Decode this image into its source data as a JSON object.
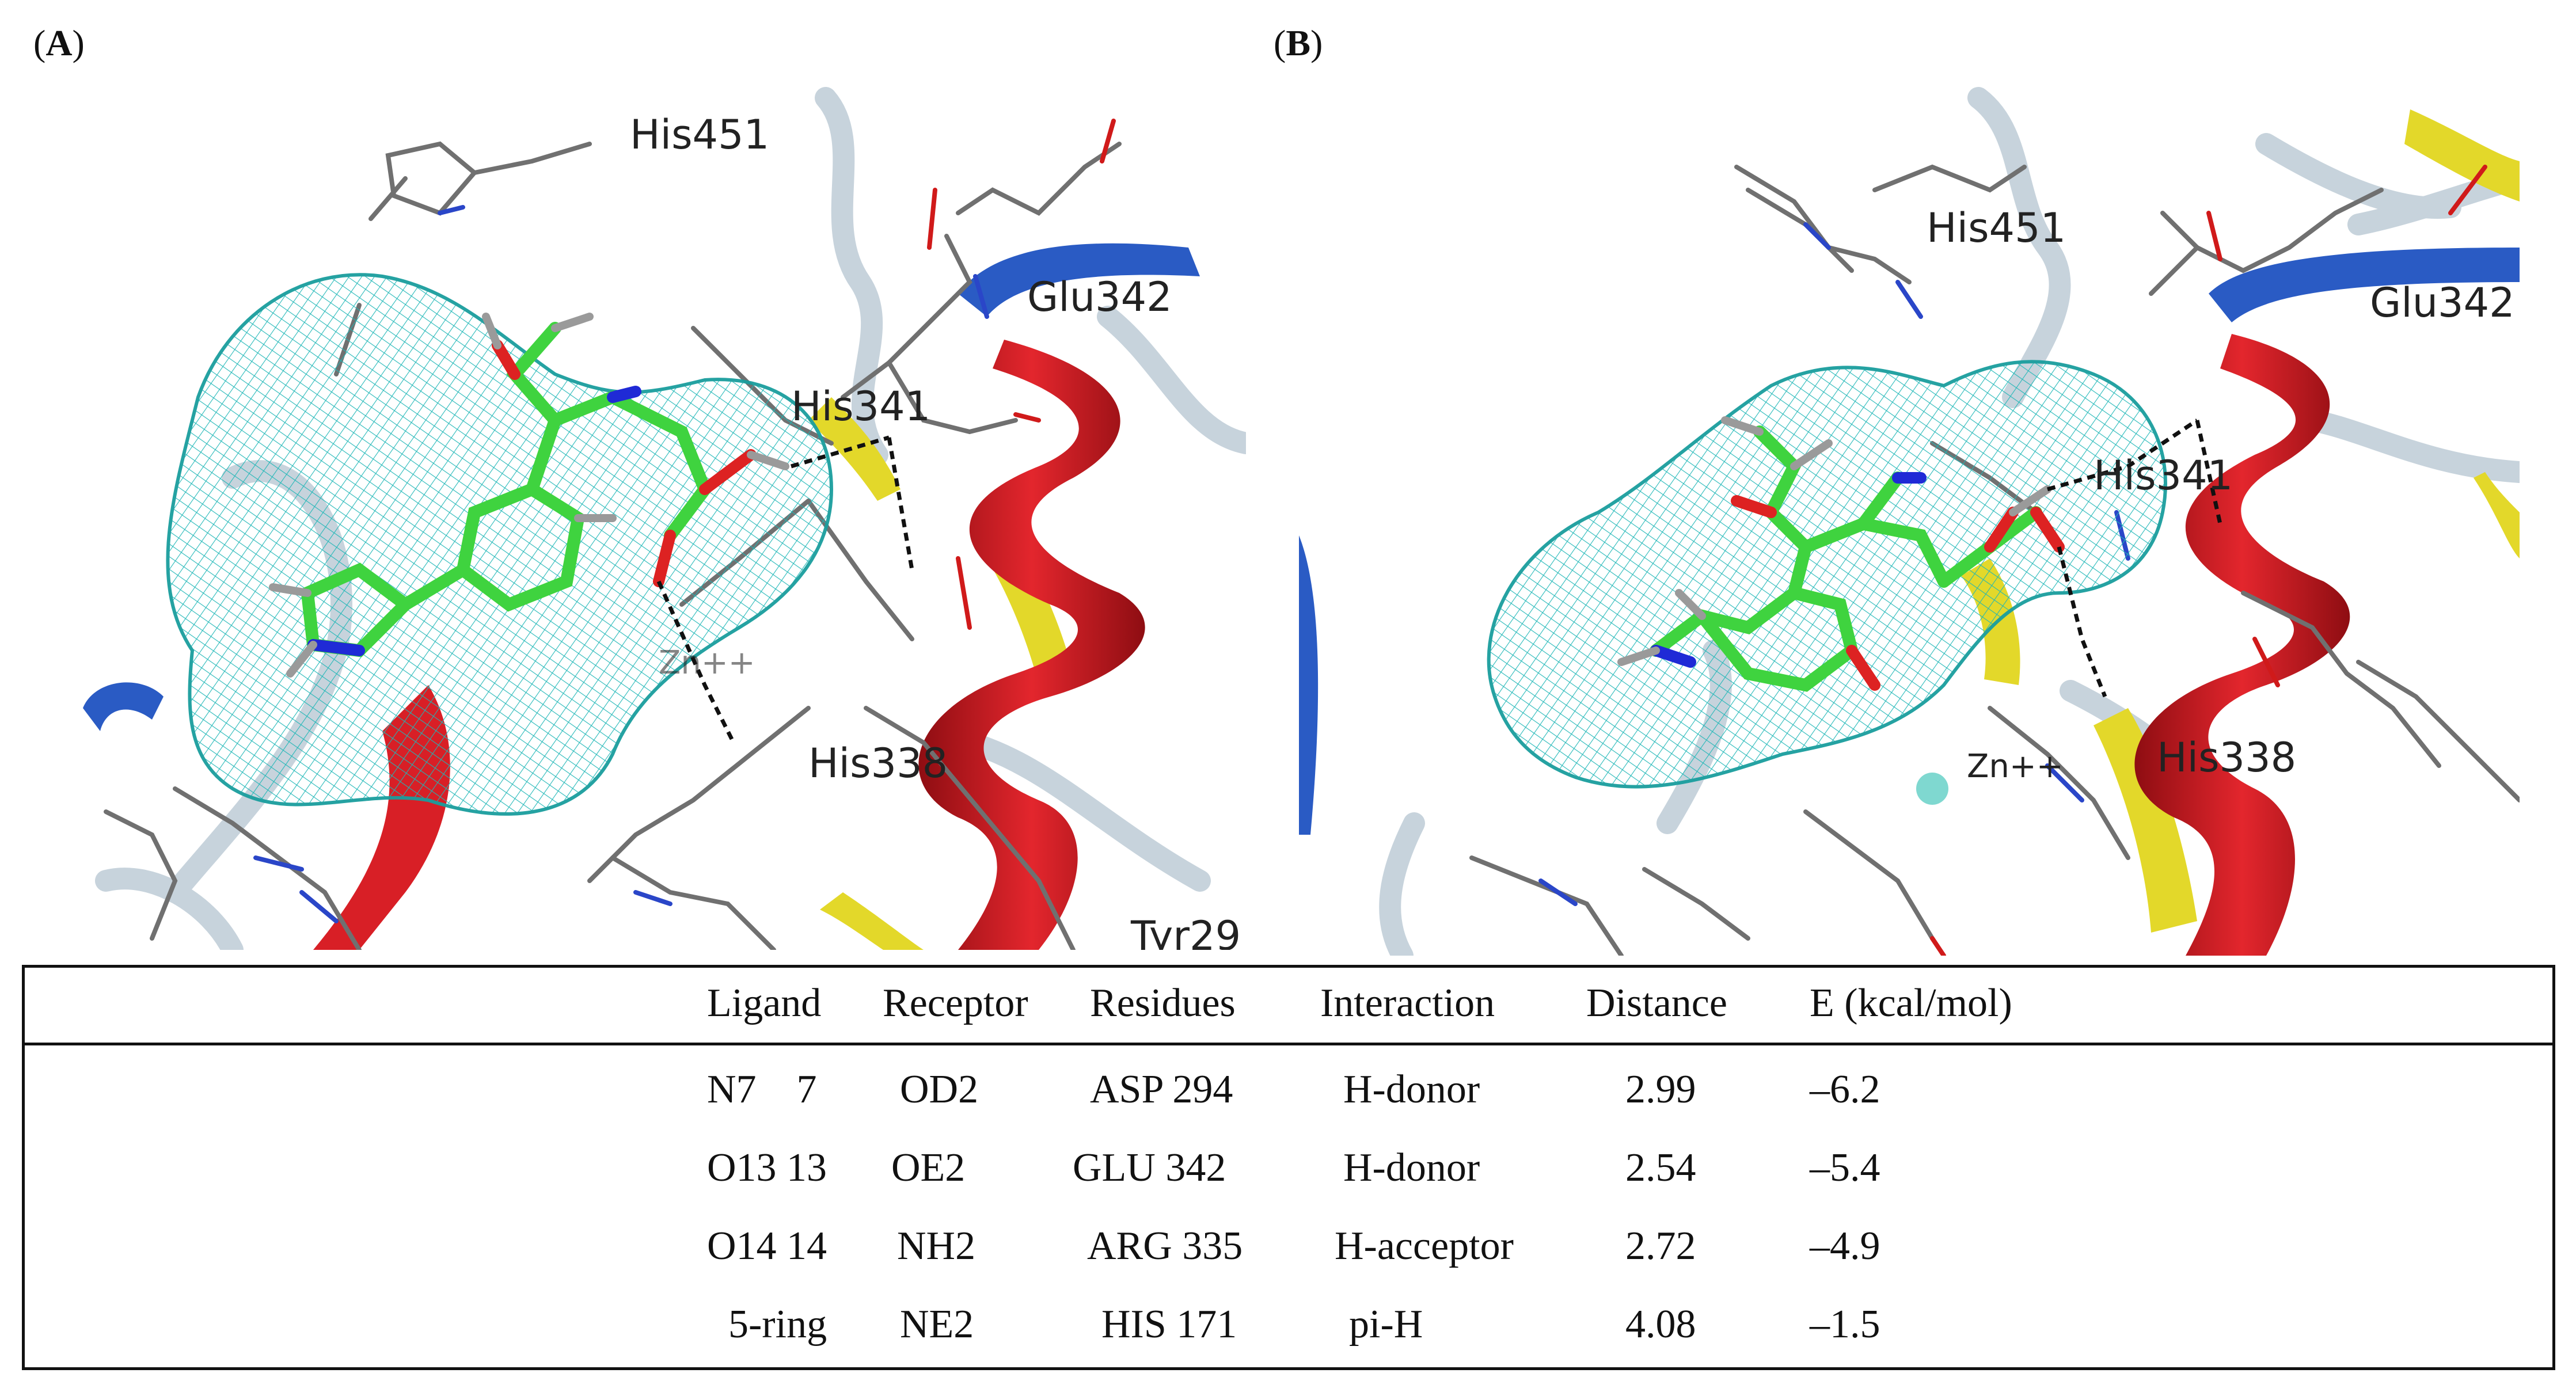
{
  "figure": {
    "panel_a": {
      "open": "(",
      "letter": "A",
      "close": ")"
    },
    "panel_b": {
      "open": "(",
      "letter": "B",
      "close": ")"
    }
  },
  "scene_a_labels": {
    "his451": "His451",
    "glu342": "Glu342",
    "his341": "His341",
    "zn": "Zn++",
    "his338": "His338",
    "tyr": "Tyr29"
  },
  "scene_b_labels": {
    "his451": "His451",
    "glu342": "Glu342",
    "his341": "His341",
    "zn": "Zn++",
    "his338": "His338"
  },
  "colors": {
    "mesh": "#1fb7b7",
    "ligand_carbon": "#3fd33f",
    "helix_red": "#d81f26",
    "strand_blue": "#2a5bc4",
    "turn_yellow": "#e3d82a",
    "coil_gray": "#c7d3dc"
  },
  "table": {
    "headers": [
      "Ligand",
      "Receptor",
      "Residues",
      "Interaction",
      "Distance",
      "E (kcal/mol)"
    ],
    "rows": [
      [
        "N7    7",
        "OD2",
        "ASP 294",
        "H-donor",
        "2.99",
        "–6.2"
      ],
      [
        "O13 13",
        "OE2",
        "GLU 342",
        "H-donor",
        "2.54",
        "–5.4"
      ],
      [
        "O14 14",
        "NH2",
        "ARG 335",
        "H-acceptor",
        "2.72",
        "–4.9"
      ],
      [
        "5-ring",
        "NE2",
        "HIS 171",
        "pi-H",
        "4.08",
        "–1.5"
      ]
    ]
  }
}
